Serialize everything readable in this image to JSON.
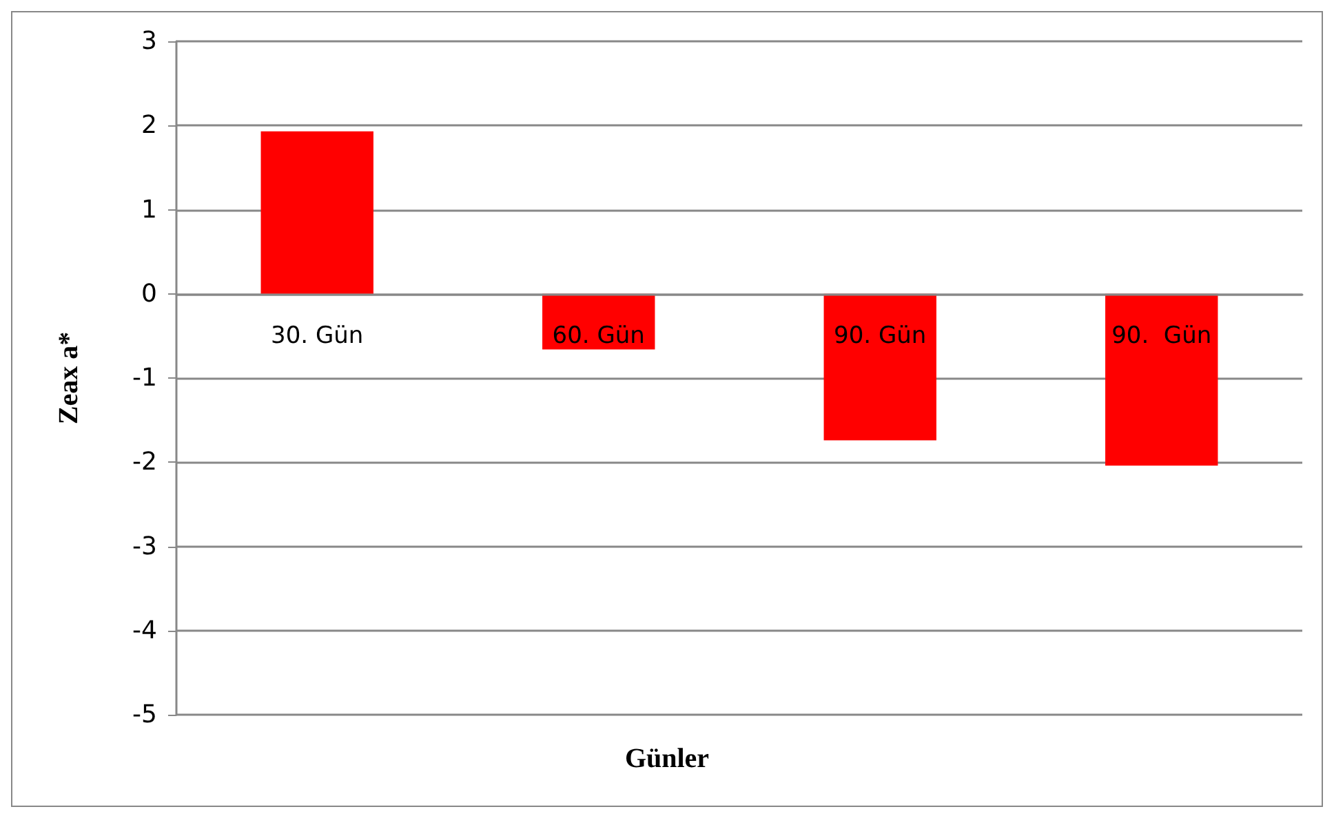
{
  "chart_data": {
    "type": "bar",
    "xlabel": "Günler",
    "ylabel": "Zeax a*",
    "categories": [
      "30. Gün",
      "60. Gün",
      "90. Gün",
      "90.  Gün"
    ],
    "values": [
      1.93,
      -0.66,
      -1.74,
      -2.04
    ],
    "color": "#ff0000",
    "ylim": [
      -5,
      3
    ],
    "yticks": [
      -5,
      -4,
      -3,
      -2,
      -1,
      0,
      1,
      2,
      3
    ],
    "grid": "y"
  }
}
